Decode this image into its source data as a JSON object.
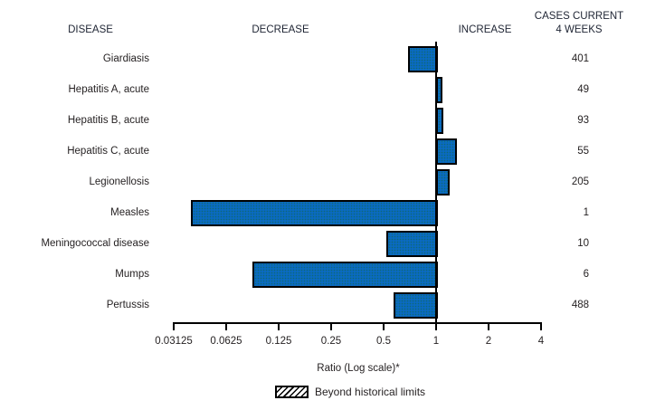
{
  "header": {
    "disease": "DISEASE",
    "decrease": "DECREASE",
    "increase": "INCREASE",
    "cases_line1": "CASES CURRENT",
    "cases_line2": "4 WEEKS"
  },
  "chart_data": {
    "type": "bar",
    "orientation": "horizontal",
    "scale": "log2",
    "baseline_value": 1,
    "xlabel": "Ratio (Log scale)*",
    "axis_ticks": [
      0.03125,
      0.0625,
      0.125,
      0.25,
      0.5,
      1,
      2,
      4
    ],
    "tick_labels": [
      "0.03125",
      "0.0625",
      "0.125",
      "0.25",
      "0.5",
      "1",
      "2",
      "4"
    ],
    "xlim": [
      0.03125,
      4
    ],
    "grid": false,
    "legend_position": "bottom",
    "legend": [
      {
        "label": "Beyond historical limits",
        "style": "hatched"
      }
    ],
    "bar_color": "#0a6ac2",
    "bar_border_color": "#000000",
    "rows": [
      {
        "disease": "Giardiasis",
        "ratio": 0.69,
        "cases": "401",
        "direction": "decrease",
        "beyond_limits": false
      },
      {
        "disease": "Hepatitis A, acute",
        "ratio": 1.06,
        "cases": "49",
        "direction": "increase",
        "beyond_limits": false
      },
      {
        "disease": "Hepatitis B, acute",
        "ratio": 1.07,
        "cases": "93",
        "direction": "increase",
        "beyond_limits": false
      },
      {
        "disease": "Hepatitis C, acute",
        "ratio": 1.29,
        "cases": "55",
        "direction": "increase",
        "beyond_limits": false
      },
      {
        "disease": "Legionellosis",
        "ratio": 1.17,
        "cases": "205",
        "direction": "increase",
        "beyond_limits": false
      },
      {
        "disease": "Measles",
        "ratio": 0.039,
        "cases": "1",
        "direction": "decrease",
        "beyond_limits": false
      },
      {
        "disease": "Meningococcal disease",
        "ratio": 0.52,
        "cases": "10",
        "direction": "decrease",
        "beyond_limits": false
      },
      {
        "disease": "Mumps",
        "ratio": 0.088,
        "cases": "6",
        "direction": "decrease",
        "beyond_limits": false
      },
      {
        "disease": "Pertussis",
        "ratio": 0.57,
        "cases": "488",
        "direction": "decrease",
        "beyond_limits": false
      }
    ]
  }
}
